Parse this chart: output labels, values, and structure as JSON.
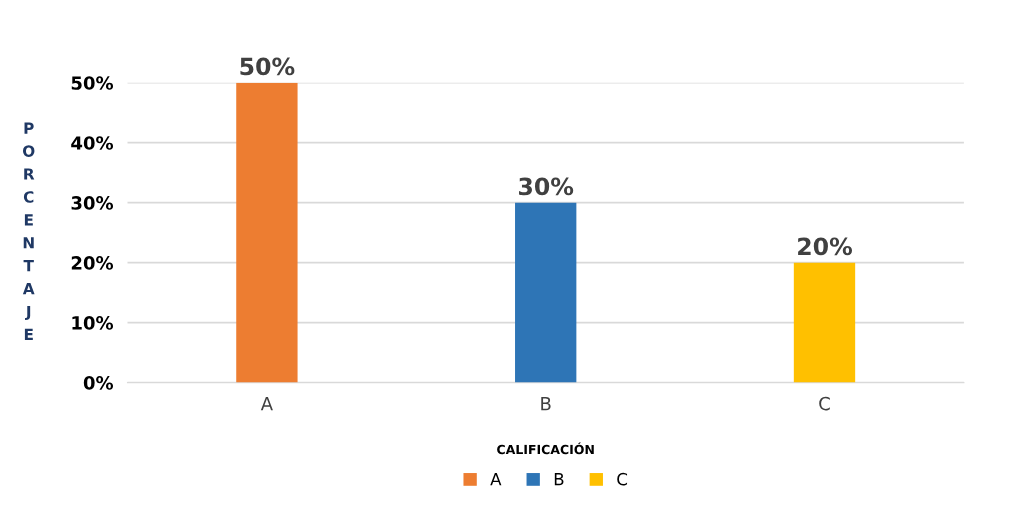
{
  "chart_data": {
    "type": "bar",
    "xlabel": "CALIFICACIÓN",
    "ylabel": "PORCENTAJE",
    "categories": [
      "A",
      "B",
      "C"
    ],
    "series": [
      {
        "name": "A",
        "color": "#ed7d31",
        "values": [
          50,
          null,
          null
        ],
        "value_labels": [
          "50%",
          null,
          null
        ]
      },
      {
        "name": "B",
        "color": "#2e75b6",
        "values": [
          null,
          30,
          null
        ],
        "value_labels": [
          null,
          "30%",
          null
        ]
      },
      {
        "name": "C",
        "color": "#ffc000",
        "values": [
          null,
          null,
          20
        ],
        "value_labels": [
          null,
          null,
          "20%"
        ]
      }
    ],
    "ylim": [
      0,
      50
    ],
    "yticks": [
      {
        "value": 0,
        "label": "0%"
      },
      {
        "value": 10,
        "label": "10%"
      },
      {
        "value": 20,
        "label": "20%"
      },
      {
        "value": 30,
        "label": "30%"
      },
      {
        "value": 40,
        "label": "40%"
      },
      {
        "value": 50,
        "label": "50%"
      }
    ],
    "grid": "y",
    "legend": "bottom"
  }
}
